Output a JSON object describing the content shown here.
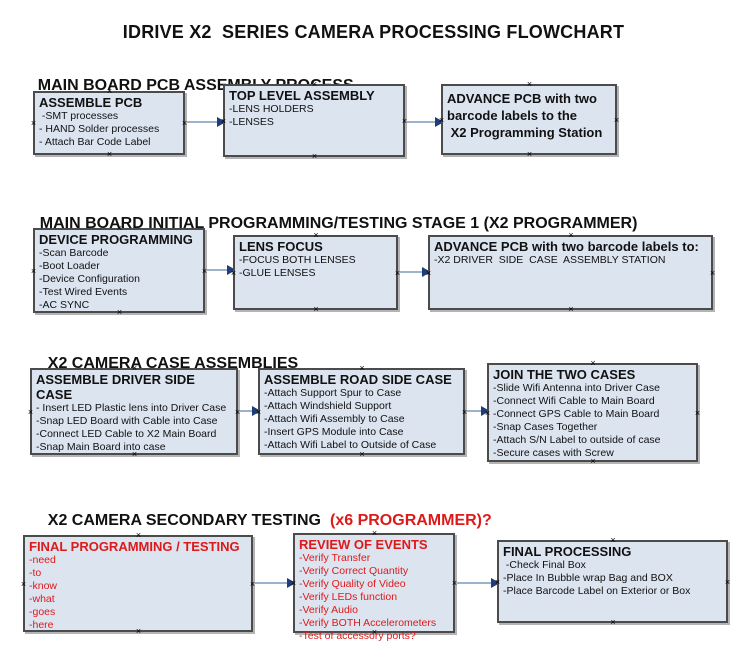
{
  "title": "IDRIVE X2  SERIES CAMERA PROCESSING FLOWCHART",
  "icons": {
    "anchor_glyph": "×"
  },
  "colors": {
    "box_fill": "#dce4f0",
    "box_border": "#4b4b4b",
    "red_text": "#dd1a1a",
    "arrow_line": "#9db3cb",
    "arrow_head": "#1f3d7a"
  },
  "sections": [
    {
      "header": "MAIN BOARD PCB ASSEMBLY PROCESS",
      "boxes": [
        {
          "title": "ASSEMBLE PCB",
          "items": [
            " -SMT processes",
            "- HAND Solder processes",
            "- Attach Bar Code Label"
          ]
        },
        {
          "title": "TOP LEVEL ASSEMBLY",
          "items": [
            "-LENS HOLDERS",
            "-LENSES"
          ]
        },
        {
          "title_lines": [
            "ADVANCE PCB with two",
            "barcode labels to the",
            " X2 Programming Station"
          ],
          "items": []
        }
      ]
    },
    {
      "header": "MAIN BOARD INITIAL PROGRAMMING/TESTING STAGE 1 (X2 PROGRAMMER)",
      "boxes": [
        {
          "title": "DEVICE PROGRAMMING",
          "items": [
            "-Scan Barcode",
            "-Boot Loader",
            "-Device Configuration",
            "-Test Wired Events",
            "-AC SYNC"
          ]
        },
        {
          "title": "LENS FOCUS",
          "items": [
            "-FOCUS BOTH LENSES",
            "-GLUE LENSES"
          ]
        },
        {
          "title": "ADVANCE PCB with two barcode labels to:",
          "items": [
            "-X2 DRIVER  SIDE  CASE  ASSEMBLY STATION"
          ]
        }
      ]
    },
    {
      "header": "X2 CAMERA CASE ASSEMBLIES",
      "boxes": [
        {
          "title": "ASSEMBLE DRIVER SIDE CASE",
          "items": [
            "- Insert LED Plastic lens into Driver Case",
            "-Snap LED Board with Cable into Case",
            "-Connect LED Cable to X2 Main Board",
            "-Snap Main Board into case"
          ]
        },
        {
          "title": "ASSEMBLE ROAD SIDE CASE",
          "items": [
            "-Attach Support Spur to Case",
            "-Attach Windshield Support",
            "-Attach Wifi Assembly to Case",
            "-Insert GPS Module into Case",
            "-Attach Wifi Label to Outside of Case"
          ]
        },
        {
          "title": "JOIN THE TWO CASES",
          "items": [
            "-Slide Wifi Antenna into Driver Case",
            "-Connect Wifi Cable to Main Board",
            "-Connect GPS Cable to Main Board",
            "-Snap Cases Together",
            "-Attach S/N Label to outside of case",
            "-Secure cases with Screw"
          ]
        }
      ]
    },
    {
      "header": "X2 CAMERA SECONDARY TESTING",
      "header_red": "(x6 PROGRAMMER)?",
      "boxes": [
        {
          "title": "FINAL PROGRAMMING / TESTING",
          "items": [
            "-need",
            "-to",
            "-know",
            "-what",
            "-goes",
            "-here"
          ]
        },
        {
          "title": "REVIEW OF EVENTS",
          "items": [
            "-Verify Transfer",
            "-Verify Correct Quantity",
            "-Verify Quality of Video",
            "-Verify LEDs function",
            "-Verify Audio",
            "-Verify BOTH Accelerometers",
            "-Test of accessory ports?"
          ]
        },
        {
          "title": "FINAL PROCESSING",
          "items": [
            " -Check Final Box",
            "-Place In Bubble wrap Bag and BOX",
            "-Place Barcode Label on Exterior or Box"
          ]
        }
      ]
    }
  ]
}
